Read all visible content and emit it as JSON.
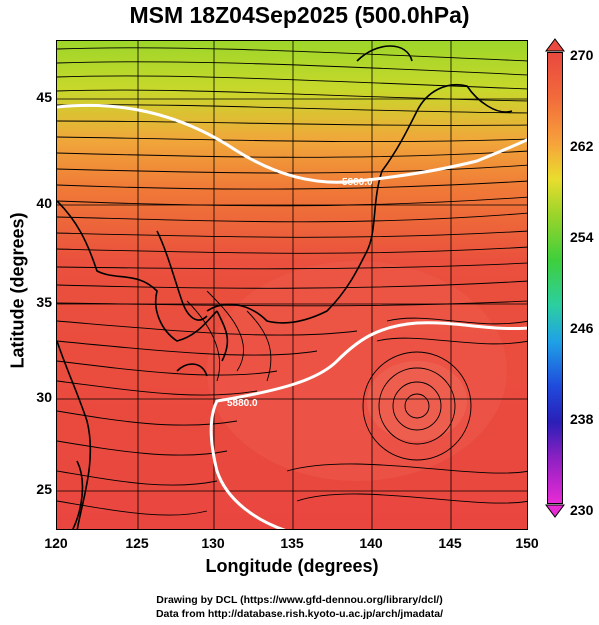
{
  "title": "MSM 18Z04Sep2025 (500.0hPa)",
  "x_axis": {
    "label": "Longitude (degrees)",
    "ticks": [
      "120",
      "125",
      "130",
      "135",
      "140",
      "145",
      "150"
    ]
  },
  "y_axis": {
    "label": "Latitude (degrees)",
    "ticks": [
      "45",
      "40",
      "35",
      "30",
      "25"
    ]
  },
  "colorbar": {
    "ticks": [
      "270",
      "262",
      "254",
      "246",
      "238",
      "230"
    ],
    "min": 230,
    "max": 270
  },
  "contour_labels": [
    "5880.0",
    "5880.0"
  ],
  "footer": {
    "line1": "Drawing by DCL (https://www.gfd-dennou.org/library/dcl/)",
    "line2": "Data from http://database.rish.kyoto-u.ac.jp/arch/jmadata/"
  },
  "colors": {
    "warm": "#e9493f",
    "mid": "#f28a3a",
    "yellow": "#d9d92a",
    "green": "#8fd62a",
    "contour": "#ffffff"
  }
}
